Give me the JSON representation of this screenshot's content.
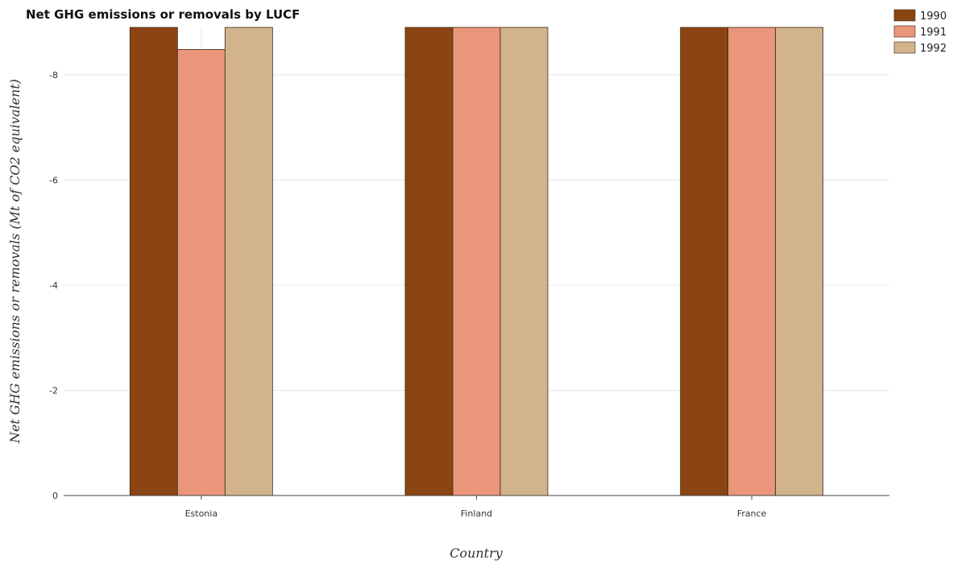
{
  "chart_data": {
    "type": "bar",
    "title": "Net GHG emissions or removals by LUCF",
    "xlabel": "Country",
    "ylabel": "Net GHG emissions or removals (Mt of CO2 equivalent)",
    "categories": [
      "Estonia",
      "Finland",
      "France"
    ],
    "series": [
      {
        "name": "1990",
        "color": "#8B4513",
        "values": [
          -8.9,
          -8.9,
          -8.9
        ]
      },
      {
        "name": "1991",
        "color": "#E9967A",
        "values": [
          -8.48,
          -8.9,
          -8.9
        ]
      },
      {
        "name": "1992",
        "color": "#D2B48C",
        "values": [
          -8.9,
          -8.9,
          -8.9
        ]
      }
    ],
    "yticks": [
      0,
      -2,
      -4,
      -6,
      -8
    ],
    "ylim": [
      0,
      -8.9
    ],
    "y_inverted": true,
    "grid": true,
    "legend_position": "top-right"
  }
}
